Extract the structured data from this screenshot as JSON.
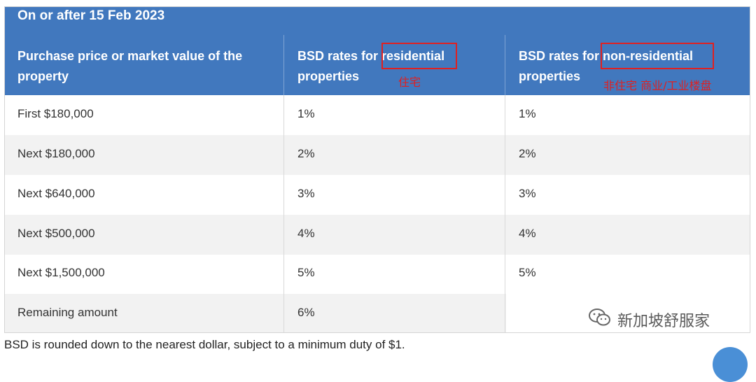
{
  "table": {
    "date_title": "On or after 15 Feb 2023",
    "headers": {
      "col1": "Purchase price or market value of the property",
      "col2": "BSD rates for residential properties",
      "col3": "BSD rates for non-residential properties"
    },
    "annotations": {
      "residential_note": "住宅",
      "nonresidential_note": "非住宅 商业/工业楼盘",
      "highlight_color": "#e02020"
    },
    "rows": [
      {
        "tier": "First $180,000",
        "residential": "1%",
        "nonresidential": "1%"
      },
      {
        "tier": "Next $180,000",
        "residential": "2%",
        "nonresidential": "2%"
      },
      {
        "tier": "Next $640,000",
        "residential": "3%",
        "nonresidential": "3%"
      },
      {
        "tier": "Next $500,000",
        "residential": "4%",
        "nonresidential": "4%"
      },
      {
        "tier": "Next $1,500,000",
        "residential": "5%",
        "nonresidential": "5%"
      },
      {
        "tier": "Remaining amount",
        "residential": "6%",
        "nonresidential": ""
      }
    ]
  },
  "footnote": "BSD is rounded down to the nearest dollar, subject to a minimum duty of $1.",
  "watermark": {
    "text": "新加坡舒服家",
    "icon": "wechat-icon"
  },
  "colors": {
    "header_bg": "#4178be",
    "row_alt": "#f2f2f2"
  }
}
